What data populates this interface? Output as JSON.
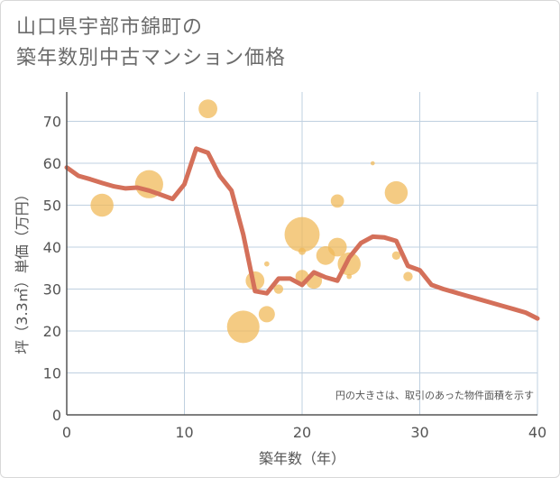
{
  "title": {
    "line1": "山口県宇部市錦町の",
    "line2": "築年数別中古マンション価格"
  },
  "chart_data": {
    "type": "scatter",
    "title": "山口県宇部市錦町の築年数別中古マンション価格",
    "xlabel": "築年数（年）",
    "ylabel": "坪（3.3㎡）単価（万円）",
    "xlim": [
      0,
      40
    ],
    "ylim": [
      0,
      77
    ],
    "xticks": [
      0,
      10,
      20,
      30,
      40
    ],
    "yticks": [
      0,
      10,
      20,
      30,
      40,
      50,
      60,
      70
    ],
    "grid": true,
    "annotation": "円の大きさは、取引のあった物件面積を示す",
    "bubbles": [
      {
        "x": 3,
        "y": 50,
        "size": 6
      },
      {
        "x": 7,
        "y": 55,
        "size": 9
      },
      {
        "x": 12,
        "y": 73,
        "size": 4
      },
      {
        "x": 15,
        "y": 21,
        "size": 12
      },
      {
        "x": 16,
        "y": 32,
        "size": 4
      },
      {
        "x": 17,
        "y": 24,
        "size": 3
      },
      {
        "x": 17,
        "y": 36,
        "size": 0.3
      },
      {
        "x": 18,
        "y": 30,
        "size": 1
      },
      {
        "x": 20,
        "y": 43,
        "size": 14
      },
      {
        "x": 20,
        "y": 33,
        "size": 2
      },
      {
        "x": 20,
        "y": 39,
        "size": 0.6
      },
      {
        "x": 21,
        "y": 32,
        "size": 3
      },
      {
        "x": 22,
        "y": 38,
        "size": 4
      },
      {
        "x": 23,
        "y": 40,
        "size": 4
      },
      {
        "x": 23,
        "y": 51,
        "size": 2
      },
      {
        "x": 24,
        "y": 36,
        "size": 6
      },
      {
        "x": 24,
        "y": 33,
        "size": 0.3
      },
      {
        "x": 26,
        "y": 60,
        "size": 0.2
      },
      {
        "x": 28,
        "y": 53,
        "size": 6
      },
      {
        "x": 28,
        "y": 38,
        "size": 0.8
      },
      {
        "x": 29,
        "y": 33,
        "size": 1
      }
    ],
    "trend_line": {
      "x": [
        0,
        1,
        2,
        3,
        4,
        5,
        6,
        7,
        8,
        9,
        10,
        11,
        12,
        13,
        14,
        15,
        16,
        17,
        18,
        19,
        20,
        21,
        22,
        23,
        24,
        25,
        26,
        27,
        28,
        29,
        30,
        31,
        32,
        33,
        34,
        35,
        36,
        37,
        38,
        39,
        40
      ],
      "y": [
        59,
        57,
        56.2,
        55.3,
        54.5,
        54,
        54.2,
        53.5,
        52.5,
        51.5,
        55,
        63.5,
        62.5,
        57,
        53.5,
        43,
        29.5,
        29,
        32.5,
        32.5,
        31,
        34,
        32.8,
        32,
        37.5,
        41,
        42.5,
        42.3,
        41.5,
        35.5,
        34.5,
        31,
        30,
        29.2,
        28.4,
        27.6,
        26.8,
        26,
        25.2,
        24.4,
        23
      ]
    },
    "colors": {
      "bubble": "#f0b95a",
      "line": "#d4705a",
      "grid": "#bfd0e0",
      "axis": "#555555"
    }
  }
}
